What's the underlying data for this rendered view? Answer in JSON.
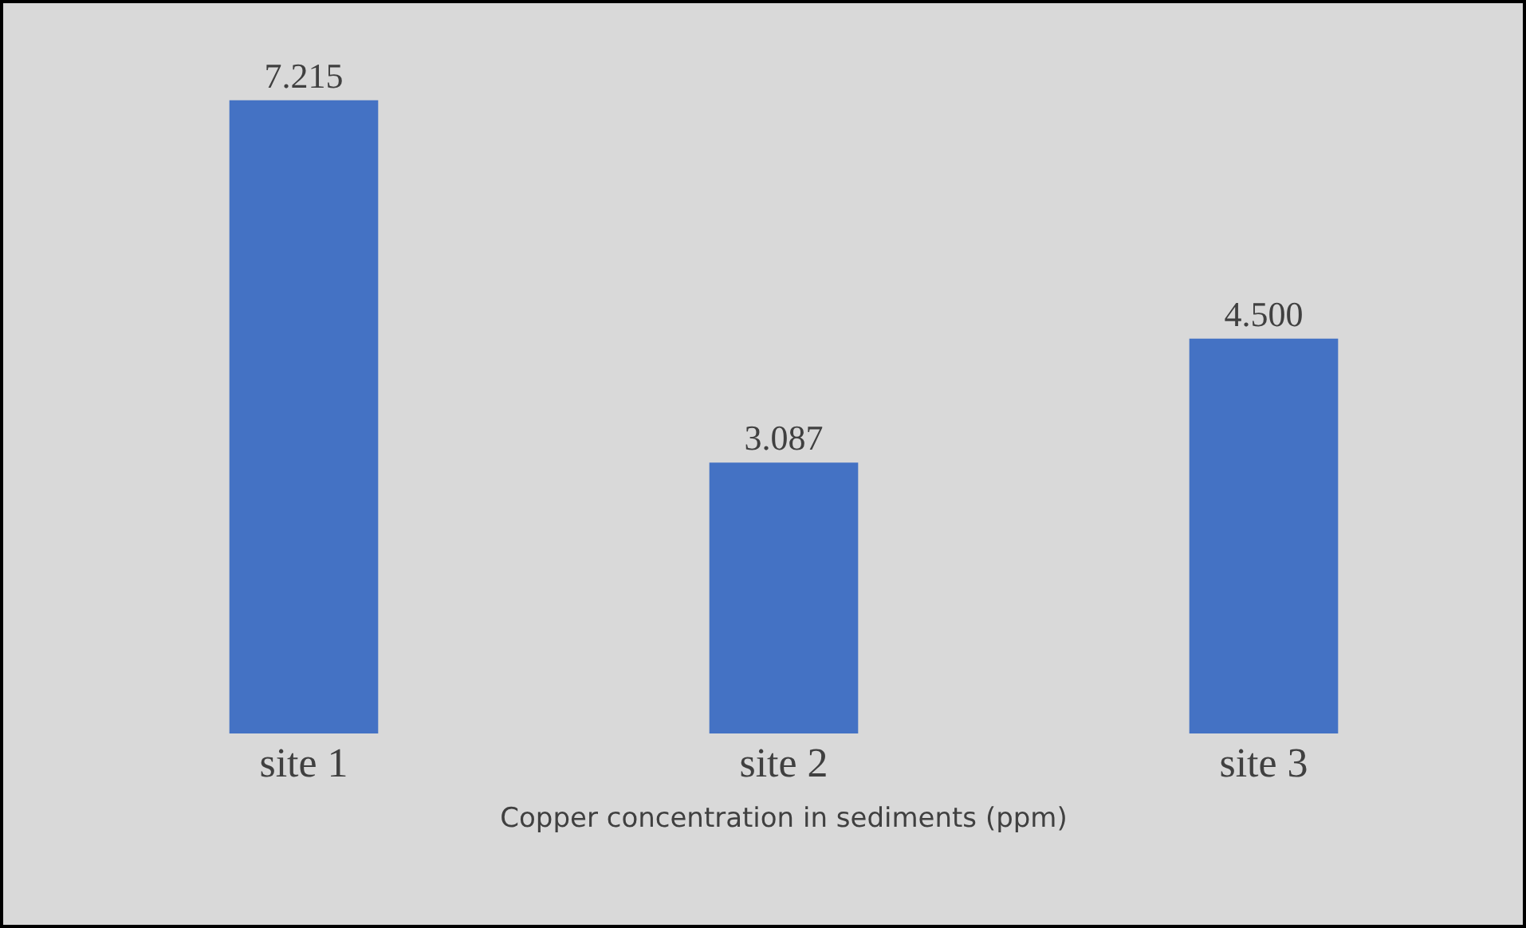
{
  "chart_data": {
    "type": "bar",
    "xlabel": "Copper concentration in sediments (ppm)",
    "categories": [
      "site 1",
      "site 2",
      "site 3"
    ],
    "values": [
      7.215,
      3.087,
      4.5
    ],
    "value_labels": [
      "7.215",
      "3.087",
      "4.500"
    ],
    "color": "#4472c4",
    "tick_labels": "x"
  }
}
